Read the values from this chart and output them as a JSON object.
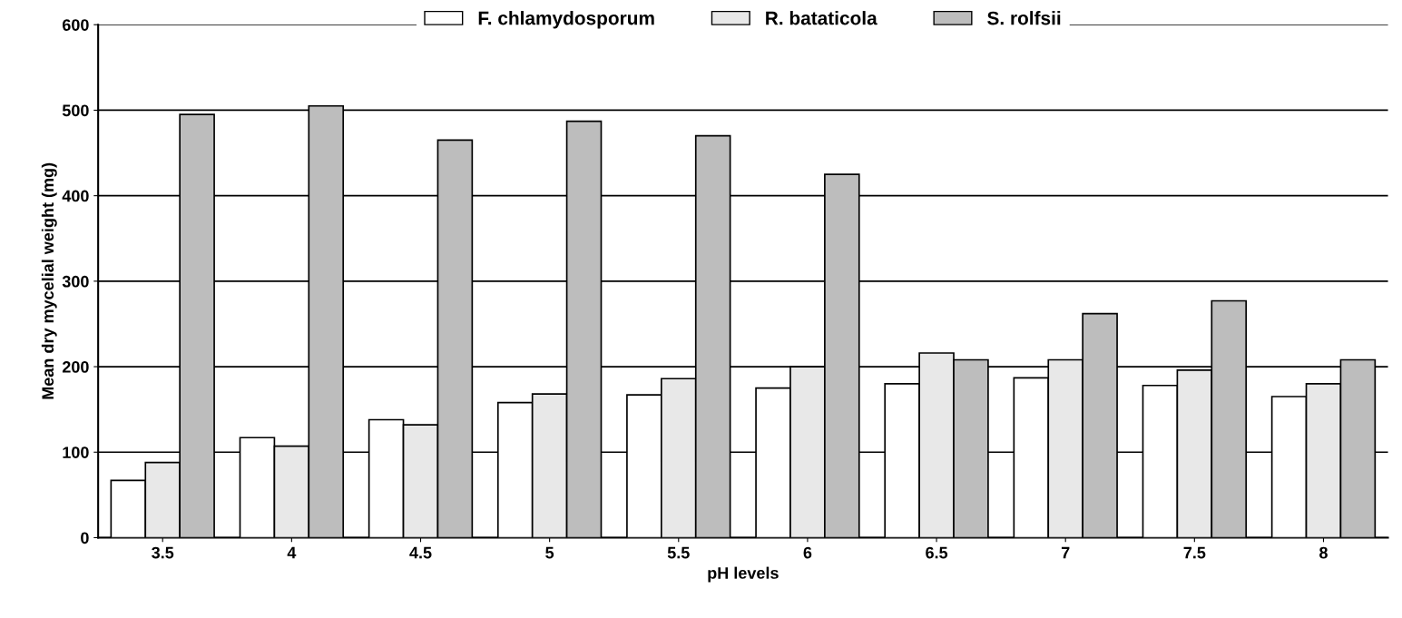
{
  "chart_data": {
    "type": "bar",
    "xlabel": "pH levels",
    "ylabel": "Mean dry mycelial weight (mg)",
    "categories": [
      "3.5",
      "4",
      "4.5",
      "5",
      "5.5",
      "6",
      "6.5",
      "7",
      "7.5",
      "8"
    ],
    "series": [
      {
        "name": "F. chlamydosporum",
        "color": "#ffffff",
        "values": [
          67,
          117,
          138,
          158,
          167,
          175,
          180,
          187,
          178,
          165
        ]
      },
      {
        "name": "R. bataticola",
        "color": "#e8e8e8",
        "values": [
          88,
          107,
          132,
          168,
          186,
          200,
          216,
          208,
          196,
          180
        ]
      },
      {
        "name": "S. rolfsii",
        "color": "#bdbdbd",
        "values": [
          495,
          505,
          465,
          487,
          470,
          425,
          208,
          262,
          277,
          208
        ]
      }
    ],
    "ylim": [
      0,
      600
    ],
    "yticks": [
      0,
      100,
      200,
      300,
      400,
      500,
      600
    ],
    "grid": "y",
    "legend": "top"
  }
}
